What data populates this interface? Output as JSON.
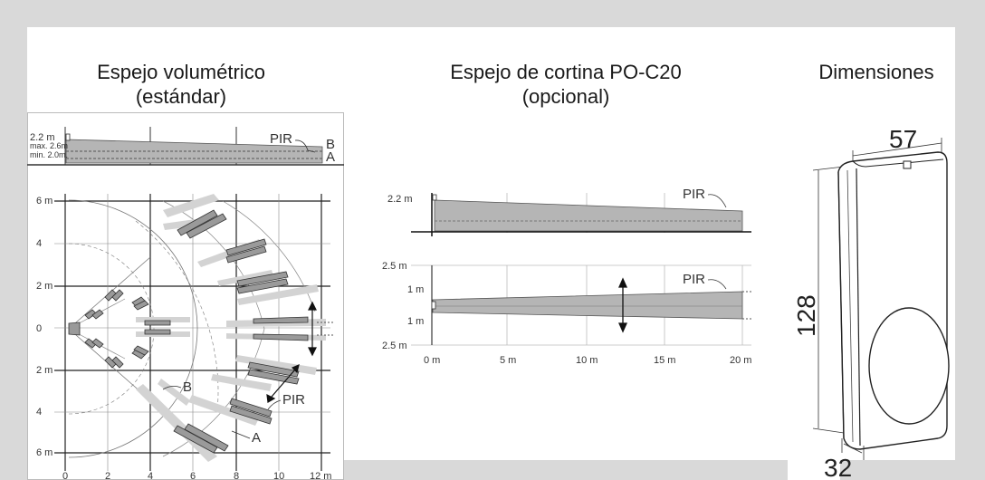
{
  "titles": {
    "volumetric_line1": "Espejo volumétrico",
    "volumetric_line2": "(estándar)",
    "curtain_line1": "Espejo de cortina PO-C20",
    "curtain_line2": "(opcional)",
    "dimensions": "Dimensiones"
  },
  "volumetric_side": {
    "h_22": "2.2 m",
    "h_max": "max. 2.6m",
    "h_min": "min. 2.0m.",
    "pir": "PIR",
    "b": "B",
    "a": "A"
  },
  "volumetric_top": {
    "y_labels": [
      "6 m",
      "4",
      "2 m",
      "0",
      "2 m",
      "4",
      "6 m"
    ],
    "x_labels": [
      "0",
      "2",
      "4",
      "6",
      "8",
      "10",
      "12 m"
    ],
    "label_b": "B",
    "label_pir": "PIR",
    "label_a": "A"
  },
  "curtain_side": {
    "h_22": "2.2 m",
    "pir": "PIR"
  },
  "curtain_top": {
    "y_top": "2.5 m",
    "y_bottom": "2.5 m",
    "one_m_top": "1 m",
    "one_m_bottom": "1 m",
    "pir": "PIR",
    "x_labels": [
      "0 m",
      "5 m",
      "10 m",
      "15 m",
      "20 m"
    ]
  },
  "dimensions": {
    "width": "57",
    "height": "128",
    "depth": "32"
  }
}
